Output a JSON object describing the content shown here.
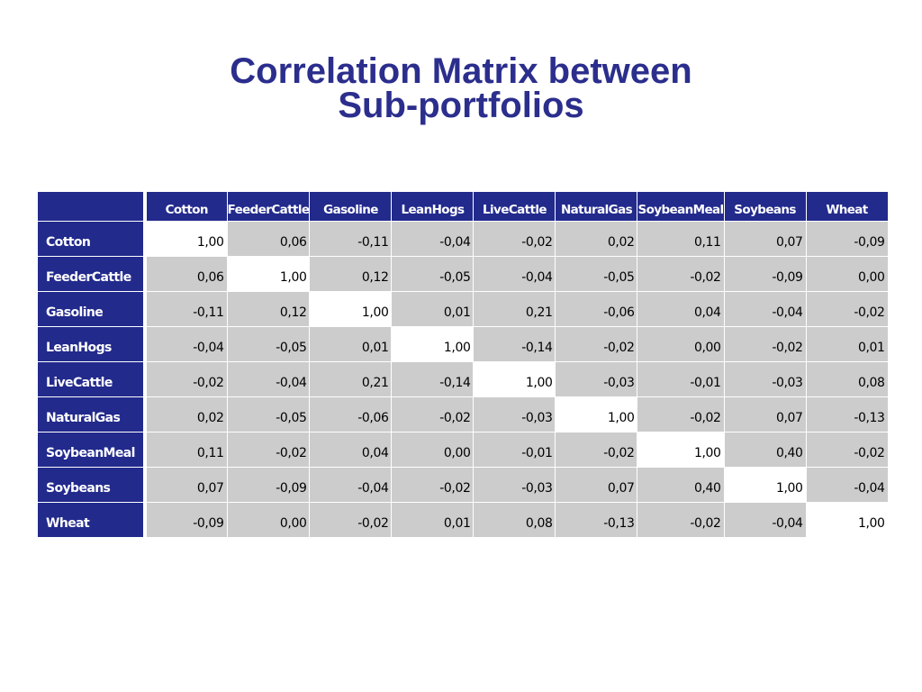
{
  "title": {
    "line1": "Correlation Matrix between",
    "line2": "Sub-portfolios"
  },
  "matrix": {
    "columns": [
      "Cotton",
      "FeederCattle",
      "Gasoline",
      "LeanHogs",
      "LiveCattle",
      "NaturalGas",
      "SoybeanMeal",
      "Soybeans",
      "Wheat"
    ],
    "rows": [
      {
        "label": "Cotton",
        "values": [
          "1,00",
          "0,06",
          "-0,11",
          "-0,04",
          "-0,02",
          "0,02",
          "0,11",
          "0,07",
          "-0,09"
        ]
      },
      {
        "label": "FeederCattle",
        "values": [
          "0,06",
          "1,00",
          "0,12",
          "-0,05",
          "-0,04",
          "-0,05",
          "-0,02",
          "-0,09",
          "0,00"
        ]
      },
      {
        "label": "Gasoline",
        "values": [
          "-0,11",
          "0,12",
          "1,00",
          "0,01",
          "0,21",
          "-0,06",
          "0,04",
          "-0,04",
          "-0,02"
        ]
      },
      {
        "label": "LeanHogs",
        "values": [
          "-0,04",
          "-0,05",
          "0,01",
          "1,00",
          "-0,14",
          "-0,02",
          "0,00",
          "-0,02",
          "0,01"
        ]
      },
      {
        "label": "LiveCattle",
        "values": [
          "-0,02",
          "-0,04",
          "0,21",
          "-0,14",
          "1,00",
          "-0,03",
          "-0,01",
          "-0,03",
          "0,08"
        ]
      },
      {
        "label": "NaturalGas",
        "values": [
          "0,02",
          "-0,05",
          "-0,06",
          "-0,02",
          "-0,03",
          "1,00",
          "-0,02",
          "0,07",
          "-0,13"
        ]
      },
      {
        "label": "SoybeanMeal",
        "values": [
          "0,11",
          "-0,02",
          "0,04",
          "0,00",
          "-0,01",
          "-0,02",
          "1,00",
          "0,40",
          "-0,02"
        ]
      },
      {
        "label": "Soybeans",
        "values": [
          "0,07",
          "-0,09",
          "-0,04",
          "-0,02",
          "-0,03",
          "0,07",
          "0,40",
          "1,00",
          "-0,04"
        ]
      },
      {
        "label": "Wheat",
        "values": [
          "-0,09",
          "0,00",
          "-0,02",
          "0,01",
          "0,08",
          "-0,13",
          "-0,02",
          "-0,04",
          "1,00"
        ]
      }
    ]
  },
  "colors": {
    "title": "#2b2e8c",
    "header_bg": "#222a8c",
    "cell_bg": "#cccccc",
    "diagonal_bg": "#ffffff"
  }
}
